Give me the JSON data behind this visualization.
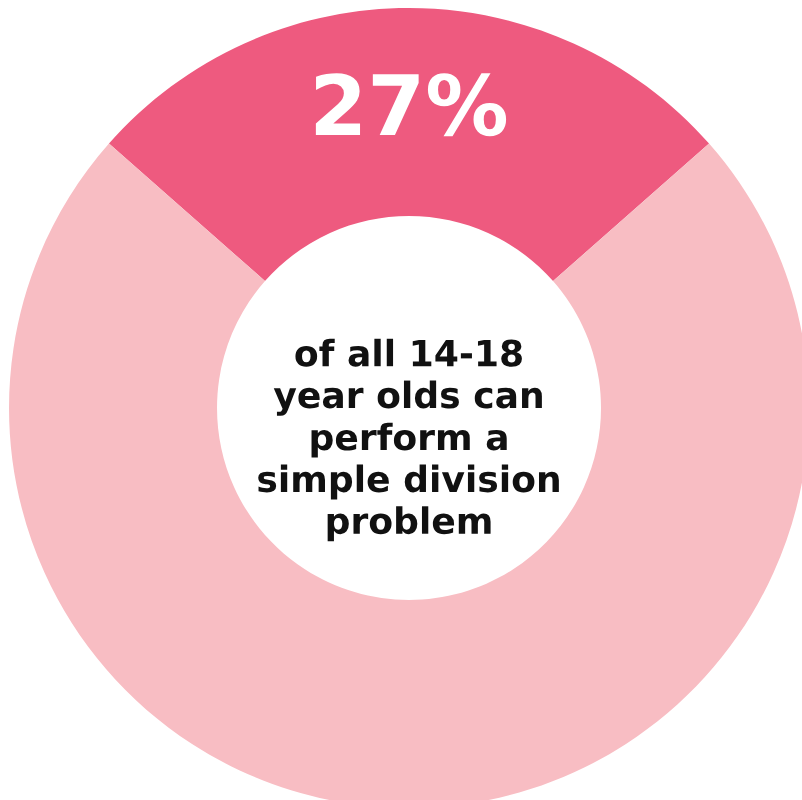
{
  "chart_data": {
    "type": "donut",
    "categories": [
      null,
      null
    ],
    "values": [
      27,
      73
    ],
    "colors": [
      "#ee5a7f",
      "#f8bdc3"
    ],
    "value_labels": [
      "27%",
      null
    ],
    "annotations": [
      "of all 14-18\nyear olds can\nperform a\nsimple division\nproblem"
    ]
  }
}
